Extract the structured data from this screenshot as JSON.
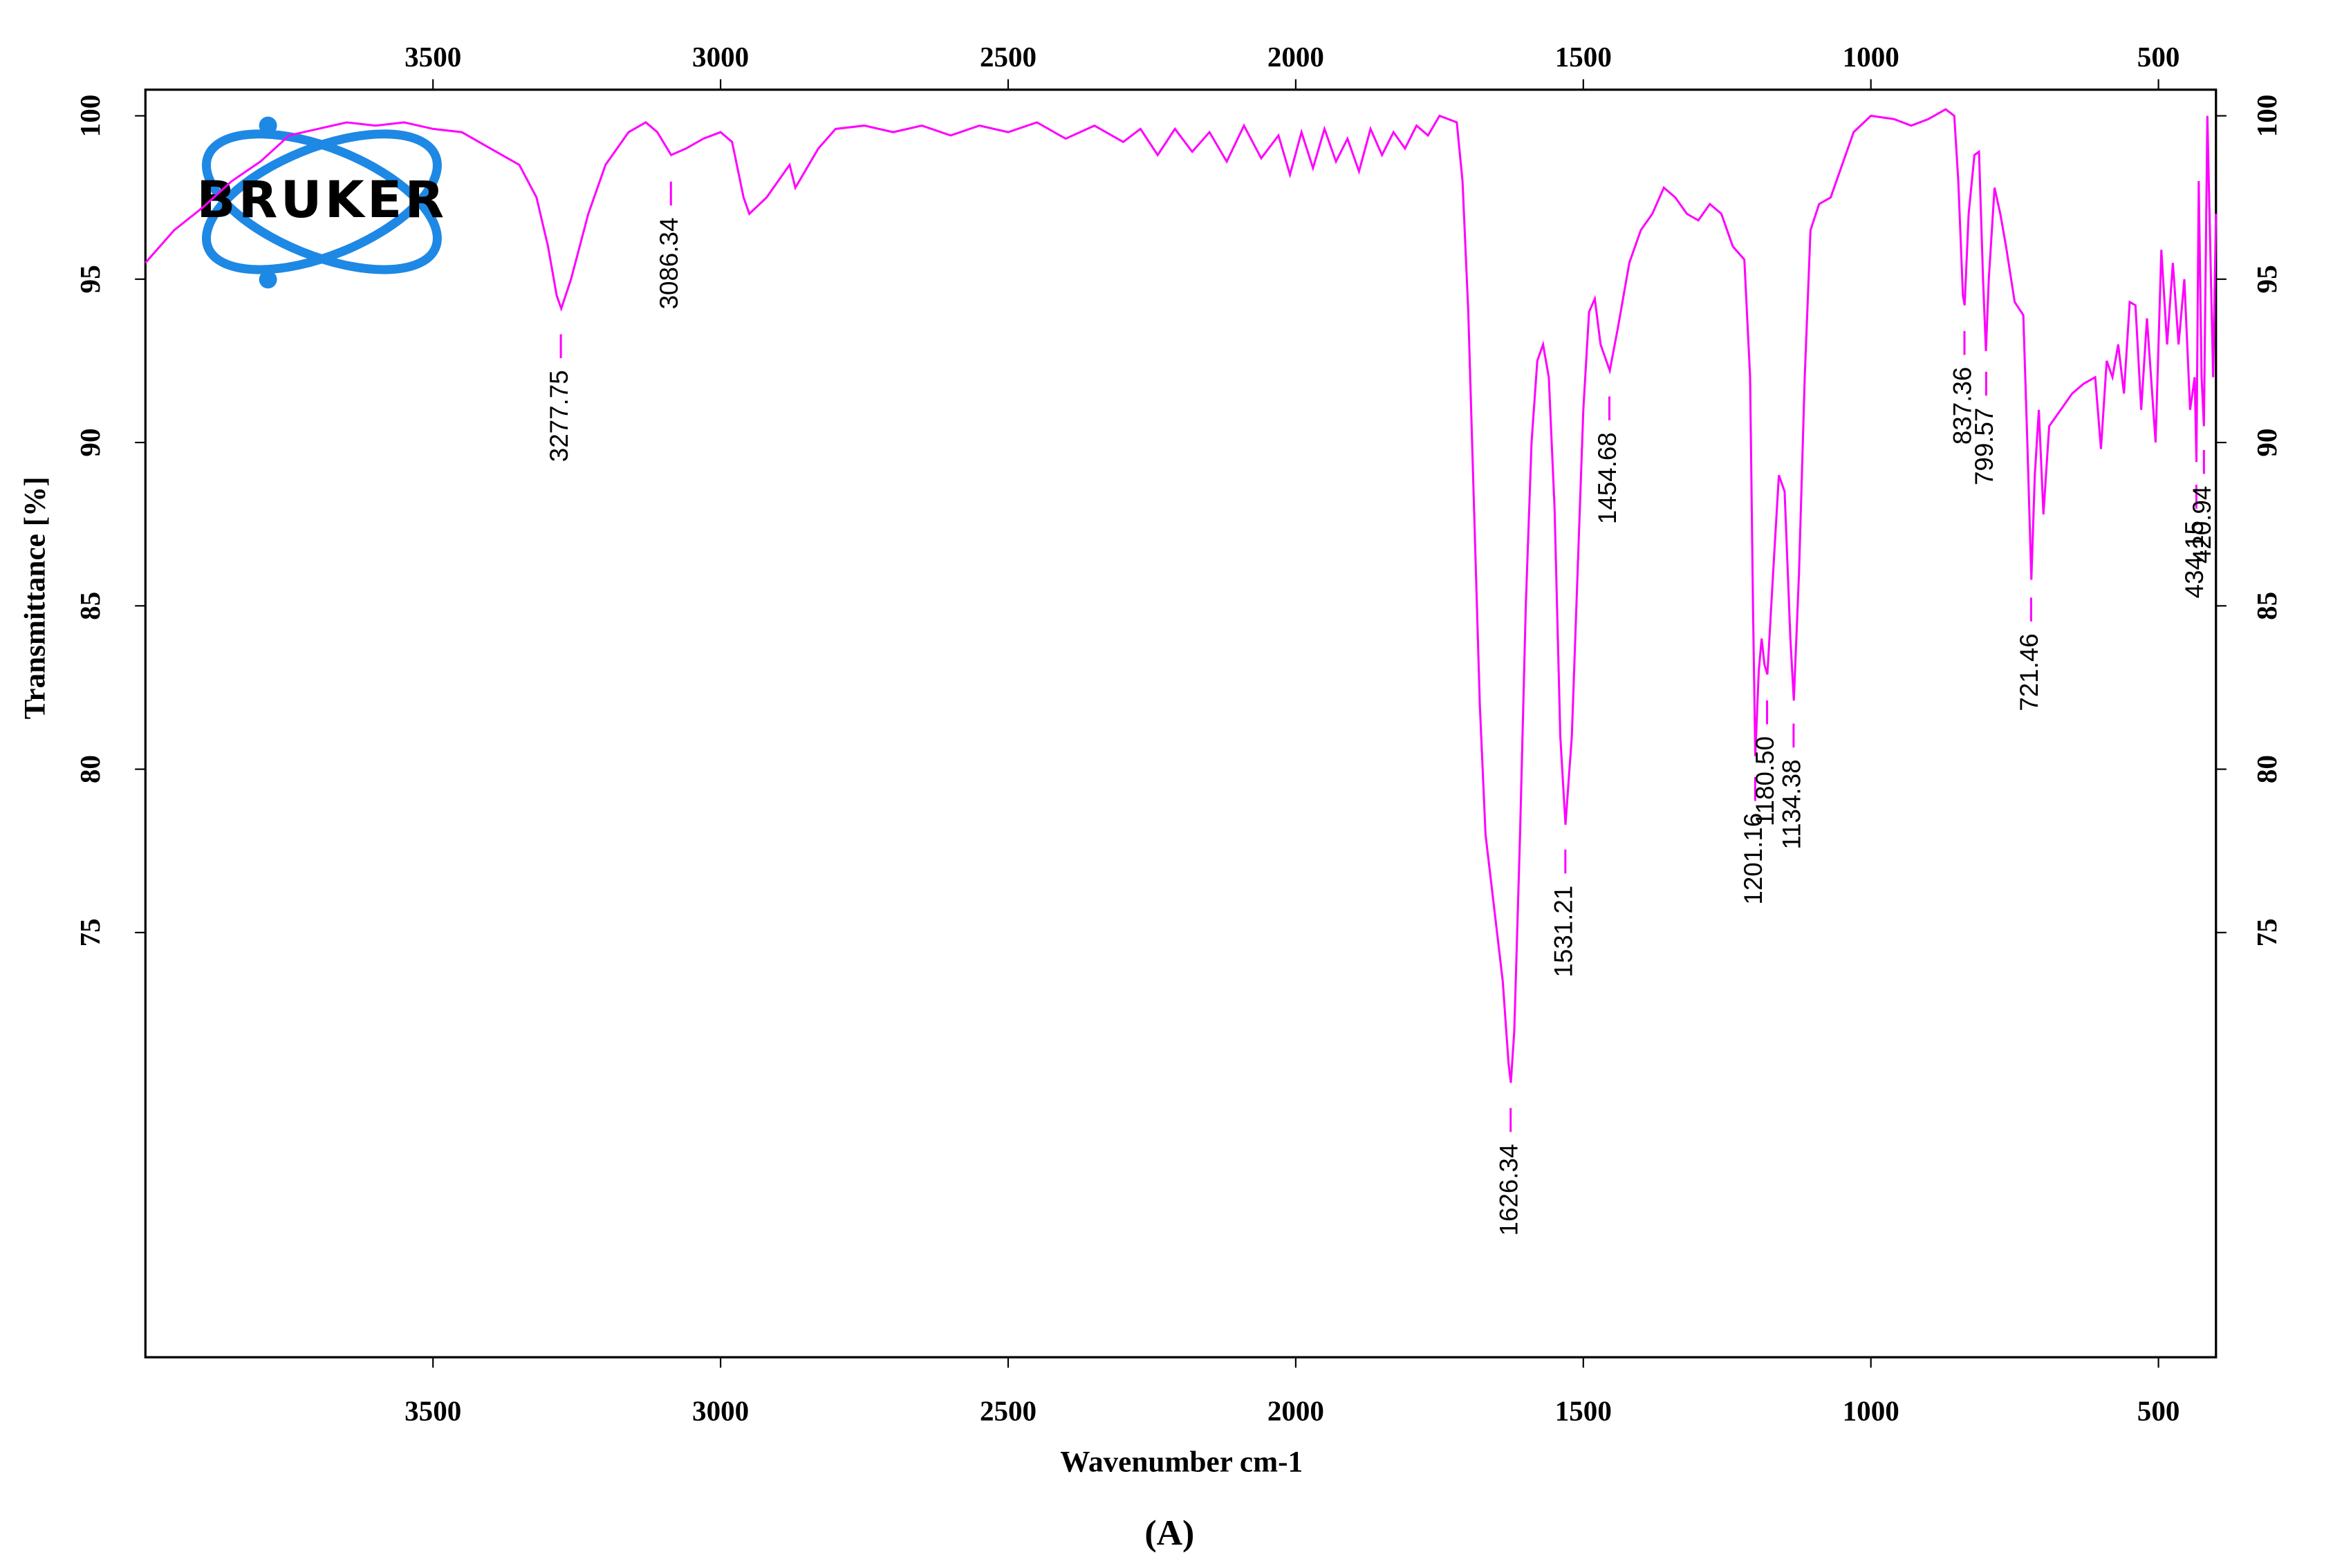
{
  "chart_data": {
    "type": "line",
    "logo": "BRUKER",
    "xlabel": "Wavenumber cm-1",
    "ylabel": "Transmittance [%]",
    "caption": "(A)",
    "color": "#ff00ff",
    "xlim": [
      4000,
      400
    ],
    "ylim": [
      62,
      100.8
    ],
    "xticks": [
      3500,
      3000,
      2500,
      2000,
      1500,
      1000,
      500
    ],
    "yticks": [
      100,
      95,
      90,
      85,
      80,
      75
    ],
    "grid": false,
    "x": [
      4000,
      3950,
      3900,
      3850,
      3800,
      3750,
      3700,
      3650,
      3600,
      3550,
      3500,
      3450,
      3400,
      3350,
      3320,
      3300,
      3285,
      3277,
      3260,
      3230,
      3200,
      3160,
      3130,
      3110,
      3086,
      3060,
      3030,
      3000,
      2980,
      2960,
      2950,
      2920,
      2900,
      2880,
      2870,
      2830,
      2800,
      2750,
      2700,
      2650,
      2600,
      2550,
      2500,
      2450,
      2400,
      2350,
      2300,
      2270,
      2240,
      2210,
      2180,
      2150,
      2120,
      2090,
      2060,
      2030,
      2010,
      1990,
      1970,
      1950,
      1930,
      1910,
      1890,
      1870,
      1850,
      1830,
      1810,
      1790,
      1770,
      1750,
      1720,
      1710,
      1700,
      1690,
      1680,
      1670,
      1660,
      1650,
      1640,
      1630,
      1626,
      1620,
      1610,
      1600,
      1590,
      1580,
      1570,
      1560,
      1550,
      1540,
      1531,
      1520,
      1510,
      1500,
      1490,
      1480,
      1470,
      1460,
      1454,
      1440,
      1420,
      1400,
      1380,
      1360,
      1340,
      1320,
      1300,
      1280,
      1260,
      1240,
      1220,
      1210,
      1205,
      1201,
      1195,
      1190,
      1185,
      1180,
      1170,
      1160,
      1150,
      1140,
      1134,
      1125,
      1115,
      1105,
      1090,
      1070,
      1050,
      1030,
      1000,
      960,
      930,
      900,
      870,
      855,
      848,
      840,
      837,
      830,
      820,
      812,
      805,
      800,
      795,
      785,
      775,
      765,
      750,
      735,
      728,
      721,
      715,
      708,
      700,
      690,
      670,
      650,
      630,
      610,
      600,
      590,
      580,
      570,
      560,
      550,
      540,
      530,
      520,
      505,
      495,
      485,
      475,
      465,
      455,
      445,
      437,
      434,
      430,
      425,
      421,
      415,
      405,
      400
    ],
    "values": [
      95.5,
      96.5,
      97.2,
      98,
      98.6,
      99.4,
      99.6,
      99.8,
      99.7,
      99.8,
      99.6,
      99.5,
      99,
      98.5,
      97.5,
      96,
      94.5,
      94.1,
      95,
      97,
      98.5,
      99.5,
      99.8,
      99.5,
      98.8,
      99,
      99.3,
      99.5,
      99.2,
      97.5,
      97,
      97.5,
      98,
      98.5,
      97.8,
      99,
      99.6,
      99.7,
      99.5,
      99.7,
      99.4,
      99.7,
      99.5,
      99.8,
      99.3,
      99.7,
      99.2,
      99.6,
      98.8,
      99.6,
      98.9,
      99.5,
      98.6,
      99.7,
      98.7,
      99.4,
      98.2,
      99.5,
      98.4,
      99.6,
      98.6,
      99.3,
      98.3,
      99.6,
      98.8,
      99.5,
      99,
      99.7,
      99.4,
      100,
      99.8,
      98,
      94,
      88,
      82,
      78,
      76.5,
      75,
      73.5,
      71,
      70.4,
      72,
      78,
      85,
      90,
      92.5,
      93,
      92,
      88,
      81,
      78.3,
      81,
      86,
      91,
      94,
      94.4,
      93,
      92.5,
      92.2,
      93.5,
      95.5,
      96.5,
      97,
      97.8,
      97.5,
      97,
      96.8,
      97.3,
      97,
      96,
      95.6,
      92,
      85,
      80.4,
      83,
      84,
      83.2,
      82.9,
      86,
      89,
      88.5,
      84,
      82.1,
      86,
      92,
      96.5,
      97.3,
      97.5,
      98.5,
      99.5,
      100,
      99.9,
      99.7,
      99.9,
      100.2,
      100,
      98,
      94.5,
      94.2,
      97,
      98.8,
      98.9,
      95,
      92.8,
      95,
      97.8,
      97,
      96,
      94.3,
      93.9,
      90,
      85.8,
      89,
      91,
      87.8,
      90.5,
      91,
      91.5,
      91.8,
      92,
      89.8,
      92.5,
      92,
      93,
      91.5,
      94.3,
      94.2,
      91,
      93.8,
      90,
      95.9,
      93,
      95.5,
      93,
      95,
      91,
      92,
      89.4,
      98,
      92,
      90.5,
      100,
      92,
      97
    ],
    "peaks": [
      {
        "value": 3277.75,
        "label": "3277.75"
      },
      {
        "value": 3086.34,
        "label": "3086.34"
      },
      {
        "value": 1626.34,
        "label": "1626.34"
      },
      {
        "value": 1531.21,
        "label": "1531.21"
      },
      {
        "value": 1454.68,
        "label": "1454.68"
      },
      {
        "value": 1201.16,
        "label": "1201.16"
      },
      {
        "value": 1180.5,
        "label": "1180.50"
      },
      {
        "value": 1134.38,
        "label": "1134.38"
      },
      {
        "value": 837.36,
        "label": "837.36"
      },
      {
        "value": 799.57,
        "label": "799.57"
      },
      {
        "value": 721.46,
        "label": "721.46"
      },
      {
        "value": 434.15,
        "label": "434.15"
      },
      {
        "value": 420.94,
        "label": "420.94"
      }
    ]
  }
}
